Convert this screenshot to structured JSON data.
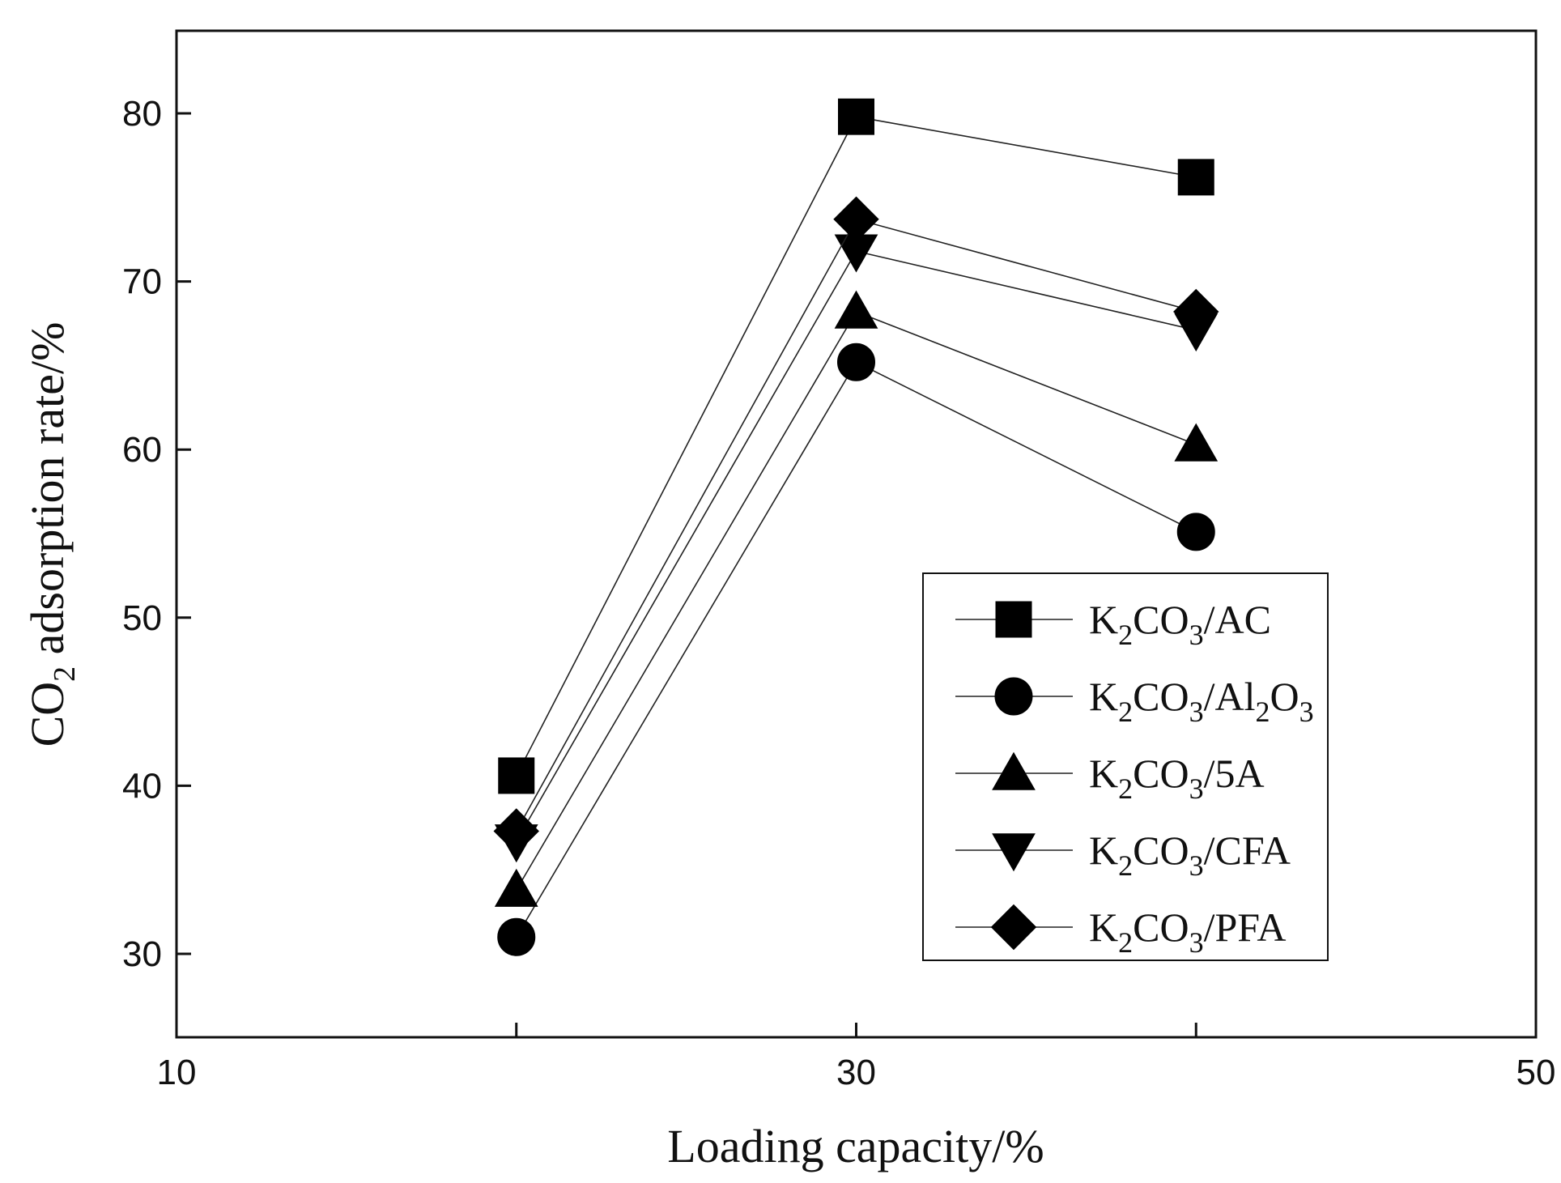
{
  "chart_data": {
    "type": "line",
    "title": "",
    "xlabel": "Loading capacity/%",
    "ylabel": {
      "main": "CO",
      "sub": "2",
      "rest": " adsorption rate/%"
    },
    "xlim": [
      10,
      50
    ],
    "ylim": [
      25,
      85
    ],
    "x_major_ticks": [
      10,
      30,
      50
    ],
    "x_minor_ticks": [
      20,
      40
    ],
    "y_ticks": [
      30,
      40,
      50,
      60,
      70,
      80
    ],
    "x_tick_labels": [
      "10",
      "30",
      "50"
    ],
    "y_tick_labels": [
      "30",
      "40",
      "50",
      "60",
      "70",
      "80"
    ],
    "grid": false,
    "legend_position": "lower-right",
    "x": [
      20,
      30,
      40
    ],
    "series": [
      {
        "name": "K2CO3/AC",
        "legend": {
          "k": "K",
          "k_sub": "2",
          "co": "CO",
          "co_sub": "3",
          "suffix": "/AC"
        },
        "marker": "square",
        "values": [
          40.6,
          79.8,
          76.2
        ]
      },
      {
        "name": "K2CO3/Al2O3",
        "legend": {
          "k": "K",
          "k_sub": "2",
          "co": "CO",
          "co_sub": "3",
          "suffix": "/Al",
          "suffix_sub": "2",
          "suffix2": "O",
          "suffix2_sub": "3"
        },
        "marker": "circle",
        "values": [
          31.0,
          65.2,
          55.1
        ]
      },
      {
        "name": "K2CO3/5A",
        "legend": {
          "k": "K",
          "k_sub": "2",
          "co": "CO",
          "co_sub": "3",
          "suffix": "/5A"
        },
        "marker": "triangle-up",
        "values": [
          33.8,
          68.2,
          60.3
        ]
      },
      {
        "name": "K2CO3/CFA",
        "legend": {
          "k": "K",
          "k_sub": "2",
          "co": "CO",
          "co_sub": "3",
          "suffix": "/CFA"
        },
        "marker": "triangle-down",
        "values": [
          36.7,
          71.8,
          67.1
        ]
      },
      {
        "name": "K2CO3/PFA",
        "legend": {
          "k": "K",
          "k_sub": "2",
          "co": "CO",
          "co_sub": "3",
          "suffix": "/PFA"
        },
        "marker": "diamond",
        "values": [
          37.3,
          73.7,
          68.2
        ]
      }
    ]
  }
}
